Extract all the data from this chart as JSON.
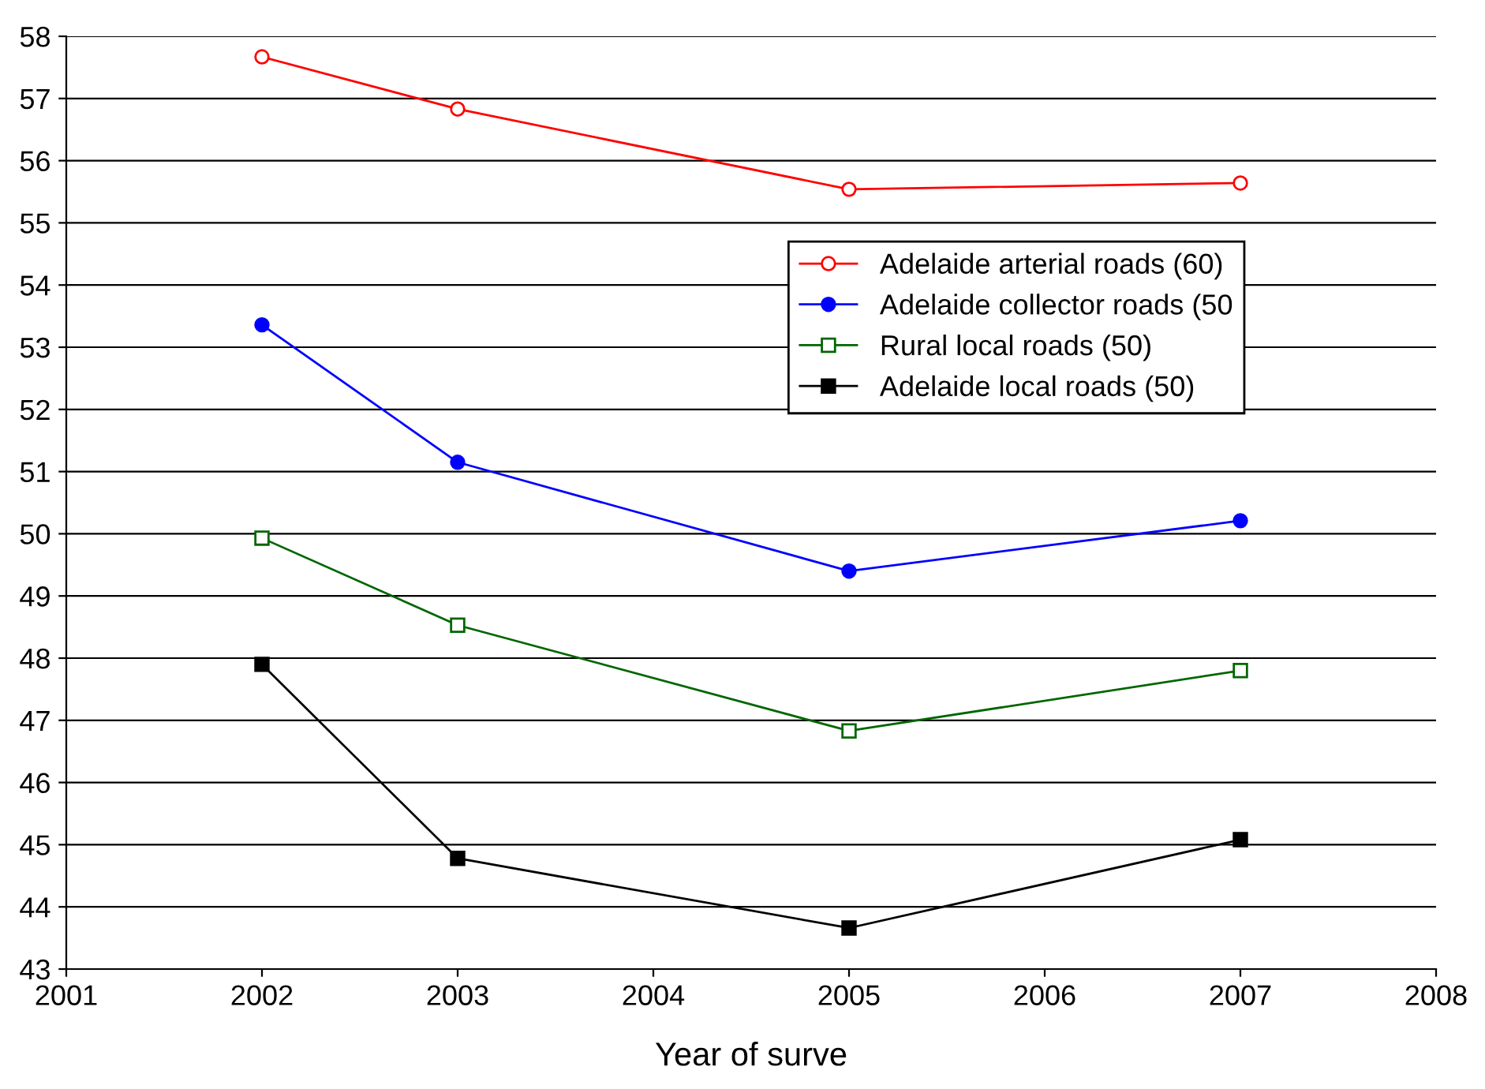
{
  "chart_data": {
    "type": "line",
    "xlabel": "Year of surve",
    "x": [
      2002,
      2003,
      2005,
      2007
    ],
    "series": [
      {
        "name": "Adelaide arterial roads (60)",
        "color": "#ff0000",
        "marker": "circle",
        "values": [
          57.67,
          56.83,
          55.54,
          55.64
        ]
      },
      {
        "name": "Adelaide collector roads (50",
        "color": "#0000ff",
        "marker": "circle",
        "values": [
          53.36,
          51.15,
          49.4,
          50.21
        ]
      },
      {
        "name": "Rural local roads (50)",
        "color": "#006600",
        "marker": "square",
        "values": [
          49.93,
          48.53,
          46.83,
          47.8
        ]
      },
      {
        "name": "Adelaide local roads (50)",
        "color": "#000000",
        "marker": "square",
        "values": [
          47.9,
          44.78,
          43.66,
          45.08
        ]
      }
    ],
    "xlim": [
      2001,
      2008
    ],
    "xticks": [
      2001,
      2002,
      2003,
      2004,
      2005,
      2006,
      2007,
      2008
    ],
    "ylim": [
      43,
      58
    ],
    "yticks": [
      43,
      44,
      45,
      46,
      47,
      48,
      49,
      50,
      51,
      52,
      53,
      54,
      55,
      56,
      57,
      58
    ],
    "grid": "y",
    "legend": "upper right",
    "line_style": "solid"
  }
}
